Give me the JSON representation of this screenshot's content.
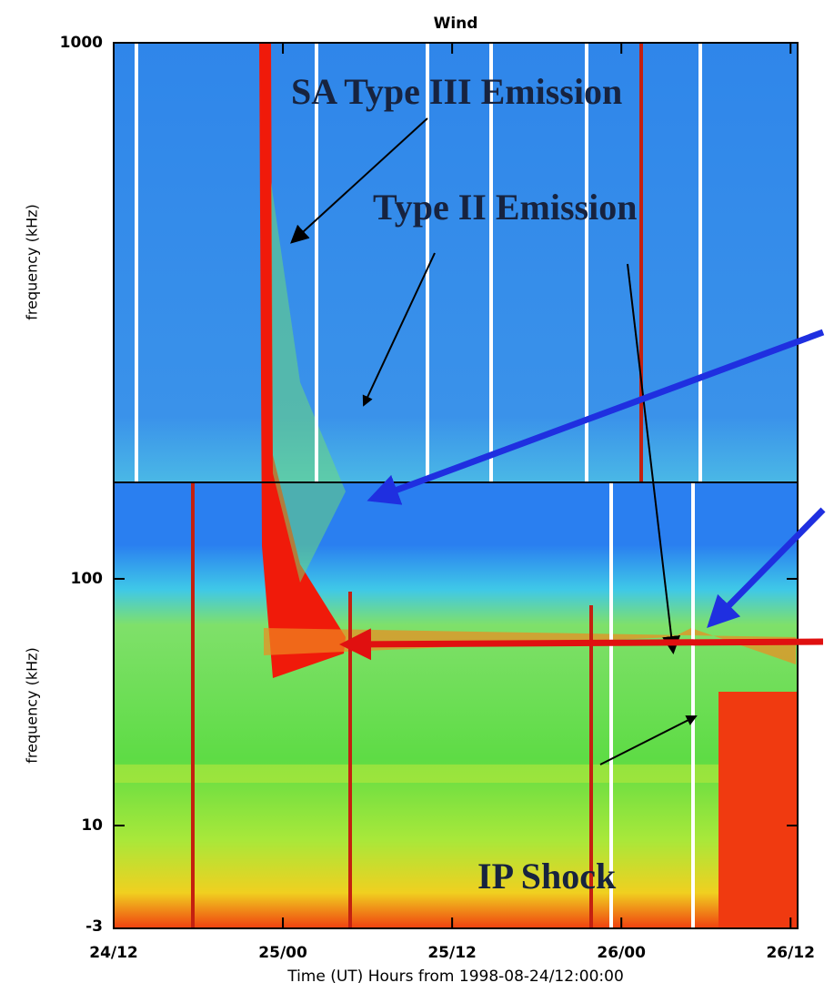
{
  "chart_data": [
    {
      "type": "spectrogram",
      "title": "Wind",
      "ylabel": "frequency (kHz)",
      "ylim": [
        246,
        1000
      ],
      "yticks": [
        1000
      ],
      "log_y": true
    },
    {
      "type": "spectrogram",
      "ylabel": "frequency (kHz)",
      "ylim": [
        3.83,
        246
      ],
      "yticks": [
        10,
        100
      ],
      "log_y": true,
      "bottom_tick_text": "-3",
      "xlabel": "Time (UT) Hours from 1998-08-24/12:00:00",
      "xlim": [
        0,
        48.5
      ],
      "xticks": [
        {
          "value": 0,
          "label": "24/12"
        },
        {
          "value": 12,
          "label": "25/00"
        },
        {
          "value": 24,
          "label": "25/12"
        },
        {
          "value": 36,
          "label": "26/00"
        },
        {
          "value": 48,
          "label": "26/12"
        }
      ]
    }
  ],
  "annotations": [
    "SA Type III Emission",
    "Type II Emission",
    "IP Shock"
  ]
}
